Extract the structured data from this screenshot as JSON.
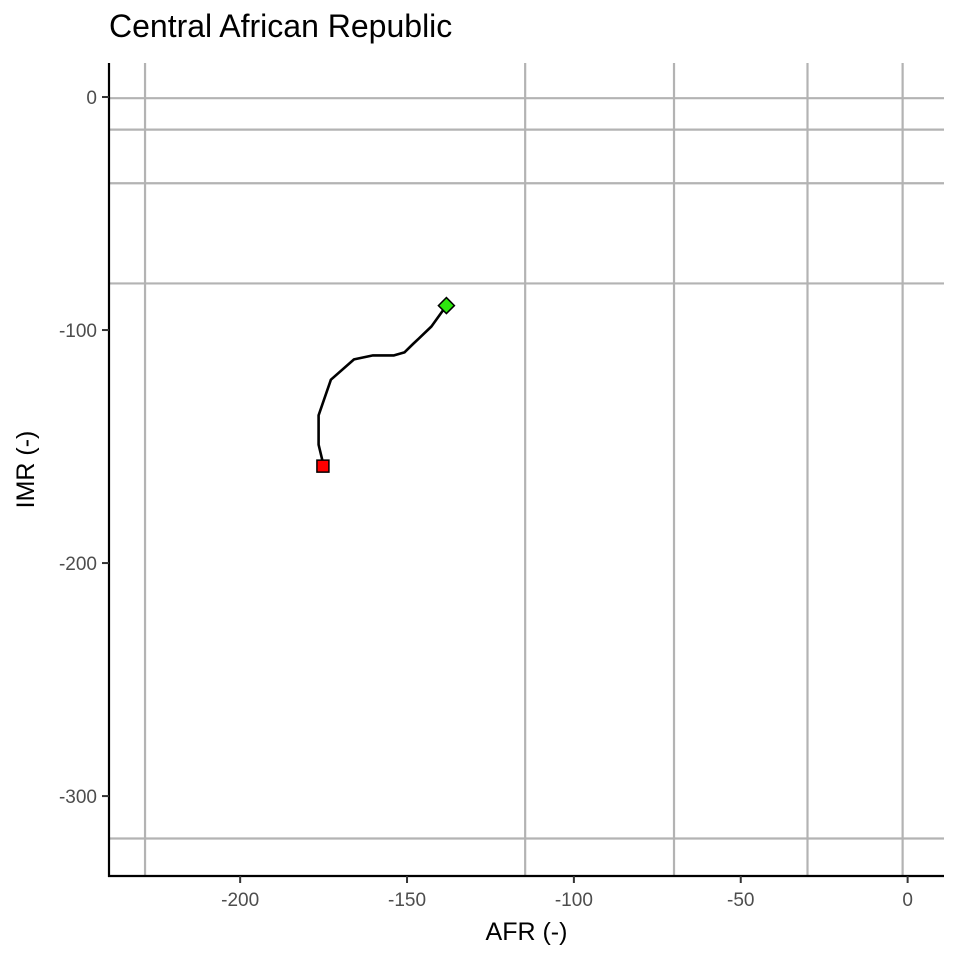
{
  "chart_data": {
    "type": "line",
    "title": "Central African Republic",
    "xlabel": "AFR (-)",
    "ylabel": "IMR (-)",
    "xlim": [
      -239.3,
      10.9
    ],
    "ylim": [
      -334.3,
      14.6
    ],
    "x_ticks": [
      -200,
      -150,
      -100,
      -50,
      0
    ],
    "y_ticks": [
      0,
      -100,
      -200,
      -300
    ],
    "grid": true,
    "reference_lines": {
      "vertical": [
        -228.5,
        -114.6,
        -70,
        -30,
        -1.5
      ],
      "horizontal": [
        -0.5,
        -14,
        -37,
        -80,
        -318.2
      ]
    },
    "series": [
      {
        "x": [
          -138.2,
          -142.7,
          -146.6,
          -148.2,
          -150.8,
          -153.9,
          -156.5,
          -160.2,
          -165.9,
          -172.8,
          -176.5,
          -176.5,
          -175.4,
          -175.2
        ],
        "y": [
          -89.5,
          -98.5,
          -103.8,
          -106.0,
          -109.6,
          -110.9,
          -110.9,
          -110.9,
          -112.6,
          -121.3,
          -136.6,
          -149.2,
          -155.8,
          -158.4
        ]
      }
    ],
    "start_point": {
      "x": -138.2,
      "y": -89.5,
      "color": "#2ee60f",
      "shape": "diamond"
    },
    "end_point": {
      "x": -175.2,
      "y": -158.4,
      "color": "#ff0000",
      "shape": "square"
    },
    "colors": {
      "grid": "#b3b3b3",
      "line": "#000000",
      "axis": "#000000"
    }
  }
}
